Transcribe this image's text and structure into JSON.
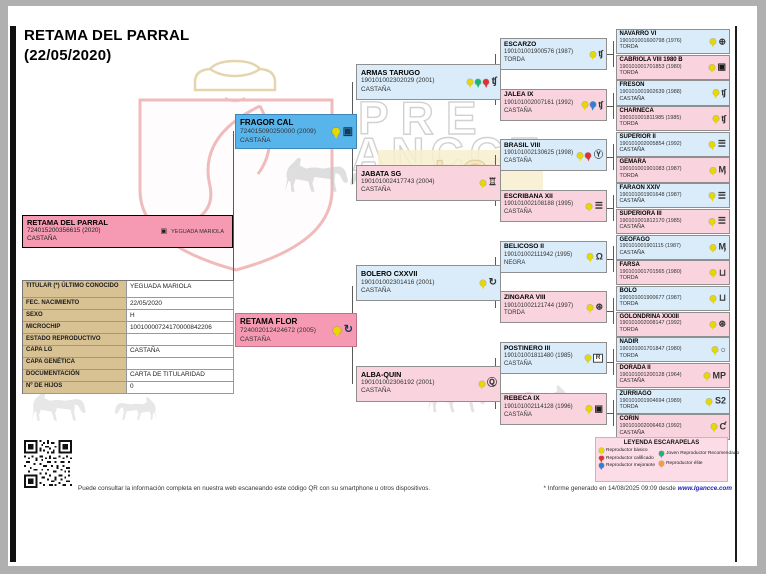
{
  "page": {
    "title_line1": "RETAMA DEL PARRAL",
    "title_line2": "(22/05/2020)",
    "qr_note": "Puede consultar la información completa en nuestra web escaneando este código QR con su smartphone u otros dispositivos.",
    "footer_note": "* Informe generado en 14/08/2025 09:09 desde ",
    "footer_link": "www.lgancce.com"
  },
  "watermark": {
    "pre": "PRE",
    "ancce": "ANCCE",
    "lg": "LG"
  },
  "subject": {
    "name": "RETAMA DEL PARRAL",
    "number": "724015200356615 (2020)",
    "coat": "CASTAÑA",
    "owner": "YEGUADA MARIOLA"
  },
  "info_table": {
    "rows": [
      {
        "label": "TITULAR (*) ÚLTIMO CONOCIDO",
        "value": "YEGUADA MARIOLA"
      },
      {
        "label": "FEC. NACIMIENTO",
        "value": "22/05/2020"
      },
      {
        "label": "SEXO",
        "value": "H"
      },
      {
        "label": "MICROCHIP",
        "value": "10010000724170000842206"
      },
      {
        "label": "ESTADO REPRODUCTIVO",
        "value": ""
      },
      {
        "label": "CAPA LG",
        "value": "CASTAÑA"
      },
      {
        "label": "CAPA GENÉTICA",
        "value": ""
      },
      {
        "label": "DOCUMENTACIÓN",
        "value": "CARTA DE TITULARIDAD"
      },
      {
        "label": "Nº DE HIJOS",
        "value": "0"
      }
    ]
  },
  "pedigree": {
    "gen2": [
      {
        "name": "FRAGOR CAL",
        "number": "724015090250000 (2009)",
        "coat": "CASTAÑA",
        "tone": "sire",
        "rosettes": [
          "yellow"
        ],
        "brand": "photo-frame-icon"
      },
      {
        "name": "RETAMA FLOR",
        "number": "724002012424672 (2005)",
        "coat": "CASTAÑA",
        "tone": "dam",
        "rosettes": [
          "yellow"
        ],
        "brand": "hand-circle-icon"
      }
    ],
    "gen3": [
      {
        "name": "ARMAS TARUGO",
        "number": "190101002302029 (2001)",
        "coat": "CASTAÑA",
        "tone": "blue",
        "rosettes": [
          "yellow",
          "green",
          "red"
        ],
        "brand": "tf-brand-icon"
      },
      {
        "name": "JABATA SG",
        "number": "190101002417743 (2004)",
        "coat": "CASTAÑA",
        "tone": "pink",
        "rosettes": [
          "yellow"
        ],
        "brand": "gate-brand-icon"
      },
      {
        "name": "BOLERO CXXVII",
        "number": "190101002301416 (2001)",
        "coat": "CASTAÑA",
        "tone": "blue",
        "rosettes": [
          "yellow"
        ],
        "brand": "hand-circle-icon"
      },
      {
        "name": "ALBA-QUIN",
        "number": "190101002306192 (2001)",
        "coat": "CASTAÑA",
        "tone": "pink",
        "rosettes": [
          "yellow"
        ],
        "brand": "q-circle-icon"
      }
    ],
    "gen4": [
      {
        "name": "ESCARZO",
        "number": "190101001900576 (1987)",
        "coat": "TORDA",
        "tone": "blue",
        "rosettes": [
          "yellow"
        ],
        "brand": "tf-brand-icon"
      },
      {
        "name": "JALEA IX",
        "number": "190101002007161 (1992)",
        "coat": "CASTAÑA",
        "tone": "pink",
        "rosettes": [
          "yellow",
          "blue"
        ],
        "brand": "tf-brand-icon"
      },
      {
        "name": "BRASIL VIII",
        "number": "190101002130625 (1998)",
        "coat": "CASTAÑA",
        "tone": "blue",
        "rosettes": [
          "yellow",
          "red"
        ],
        "brand": "shield-y-icon"
      },
      {
        "name": "ESCRIBANA XII",
        "number": "190101002108188 (1995)",
        "coat": "CASTAÑA",
        "tone": "pink",
        "rosettes": [
          "yellow"
        ],
        "brand": "ladder-brand-icon"
      },
      {
        "name": "BELICOSO II",
        "number": "190101002111942 (1995)",
        "coat": "NEGRA",
        "tone": "blue",
        "rosettes": [
          "yellow"
        ],
        "brand": "helmet-icon"
      },
      {
        "name": "ZINGARA VIII",
        "number": "190101002121744 (1997)",
        "coat": "TORDA",
        "tone": "pink",
        "rosettes": [
          "yellow"
        ],
        "brand": "wheel-icon"
      },
      {
        "name": "POSTINERO III",
        "number": "190101001811480 (1985)",
        "coat": "CASTAÑA",
        "tone": "blue",
        "rosettes": [
          "yellow"
        ],
        "brand": "boxed-r-icon",
        "brand_boxed": true
      },
      {
        "name": "REBECA IX",
        "number": "190101002114128 (1996)",
        "coat": "CASTAÑA",
        "tone": "pink",
        "rosettes": [
          "yellow"
        ],
        "brand": "photo-icon",
        "brand_dark": true
      }
    ],
    "gen5": [
      {
        "name": "NAVARRO VI",
        "number": "190101001600798 (1976)",
        "coat": "TORDA",
        "tone": "blue",
        "rosettes": [
          "yellow"
        ],
        "brand": "cross-circle-icon"
      },
      {
        "name": "CABRIOLA VIII 1980 B",
        "number": "190101001701853 (1980)",
        "coat": "TORDA",
        "tone": "pink",
        "rosettes": [
          "yellow"
        ],
        "brand": "photo-icon",
        "brand_dark": true
      },
      {
        "name": "FRESON",
        "number": "190101001902639 (1988)",
        "coat": "CASTAÑA",
        "tone": "blue",
        "rosettes": [
          "yellow"
        ],
        "brand": "tf-brand-icon"
      },
      {
        "name": "CHARNECA",
        "number": "190101001811985 (1985)",
        "coat": "TORDA",
        "tone": "pink",
        "rosettes": [
          "yellow"
        ],
        "brand": "tf-brand-icon"
      },
      {
        "name": "SUPERIOR II",
        "number": "190101002005854 (1992)",
        "coat": "CASTAÑA",
        "tone": "blue",
        "rosettes": [
          "yellow"
        ],
        "brand": "ladder-brand-icon"
      },
      {
        "name": "GEMARA",
        "number": "190101001901083 (1987)",
        "coat": "TORDA",
        "tone": "pink",
        "rosettes": [
          "yellow"
        ],
        "brand": "crown-m-icon"
      },
      {
        "name": "FARAON XXIV",
        "number": "190101001901648 (1987)",
        "coat": "CASTAÑA",
        "tone": "blue",
        "rosettes": [
          "yellow"
        ],
        "brand": "ladder-brand-icon"
      },
      {
        "name": "SUPERIORA III",
        "number": "190101001812170 (1985)",
        "coat": "CASTAÑA",
        "tone": "pink",
        "rosettes": [
          "yellow"
        ],
        "brand": "ladder-brand-icon"
      },
      {
        "name": "GEOFAGO",
        "number": "190101001901115 (1987)",
        "coat": "CASTAÑA",
        "tone": "blue",
        "rosettes": [
          "yellow"
        ],
        "brand": "crown-m-icon"
      },
      {
        "name": "FARSA",
        "number": "190101001701565 (1980)",
        "coat": "TORDA",
        "tone": "pink",
        "rosettes": [
          "yellow"
        ],
        "brand": "shield-icon"
      },
      {
        "name": "BOLO",
        "number": "190101001900677 (1987)",
        "coat": "TORDA",
        "tone": "blue",
        "rosettes": [
          "yellow"
        ],
        "brand": "shield-icon"
      },
      {
        "name": "GOLONDRINA XXXIII",
        "number": "190101002008147 (1992)",
        "coat": "TORDA",
        "tone": "pink",
        "rosettes": [
          "yellow"
        ],
        "brand": "wheel-icon"
      },
      {
        "name": "NADIR",
        "number": "190101001701847 (1980)",
        "coat": "TORDA",
        "tone": "blue",
        "rosettes": [
          "yellow"
        ],
        "brand": "circle-icon"
      },
      {
        "name": "DORADA II",
        "number": "190101001200128 (1964)",
        "coat": "CASTAÑA",
        "tone": "pink",
        "rosettes": [
          "yellow"
        ],
        "brand": "mp-brand-icon"
      },
      {
        "name": "ZURRIAGO",
        "number": "190101001904694 (1989)",
        "coat": "TORDA",
        "tone": "blue",
        "rosettes": [
          "yellow"
        ],
        "brand": "s2-brand-icon"
      },
      {
        "name": "CORIN",
        "number": "190101002006463 (1992)",
        "coat": "CASTAÑA",
        "tone": "pink",
        "rosettes": [
          "yellow"
        ],
        "brand": "flag-c-icon"
      }
    ]
  },
  "legend": {
    "title": "LEYENDA ESCARAPELAS",
    "col1": [
      {
        "rosettes": [
          "yellow"
        ],
        "label": "Reproductor básico"
      },
      {
        "rosettes": [
          "red"
        ],
        "label": "Reproductor calificado"
      },
      {
        "rosettes": [
          "blue"
        ],
        "label": "Reproductor mejorante"
      }
    ],
    "col2": [
      {
        "rosettes": [
          "green"
        ],
        "label": "Joven Reproductor Recomendado"
      },
      {
        "rosettes": [
          "orange"
        ],
        "label": "Reproductor élite"
      }
    ]
  },
  "rosette_colors": {
    "yellow": "#e6d800",
    "red": "#e03030",
    "blue": "#2e7fd6",
    "green": "#19b576",
    "orange": "#f5a02a"
  },
  "icon_glyphs": {
    "photo-frame-icon": "▣",
    "photo-icon": "▣",
    "hand-circle-icon": "↻",
    "tf-brand-icon": "ʧ",
    "gate-brand-icon": "♖",
    "q-circle-icon": "Ⓠ",
    "shield-y-icon": "Ⓨ",
    "ladder-brand-icon": "☰",
    "helmet-icon": "Ω",
    "wheel-icon": "⊛",
    "boxed-r-icon": "R",
    "crown-m-icon": "Ӎ",
    "shield-icon": "⊔",
    "circle-icon": "○",
    "cross-circle-icon": "⊕",
    "mp-brand-icon": "MP",
    "s2-brand-icon": "S2",
    "flag-c-icon": "Ƈ"
  }
}
